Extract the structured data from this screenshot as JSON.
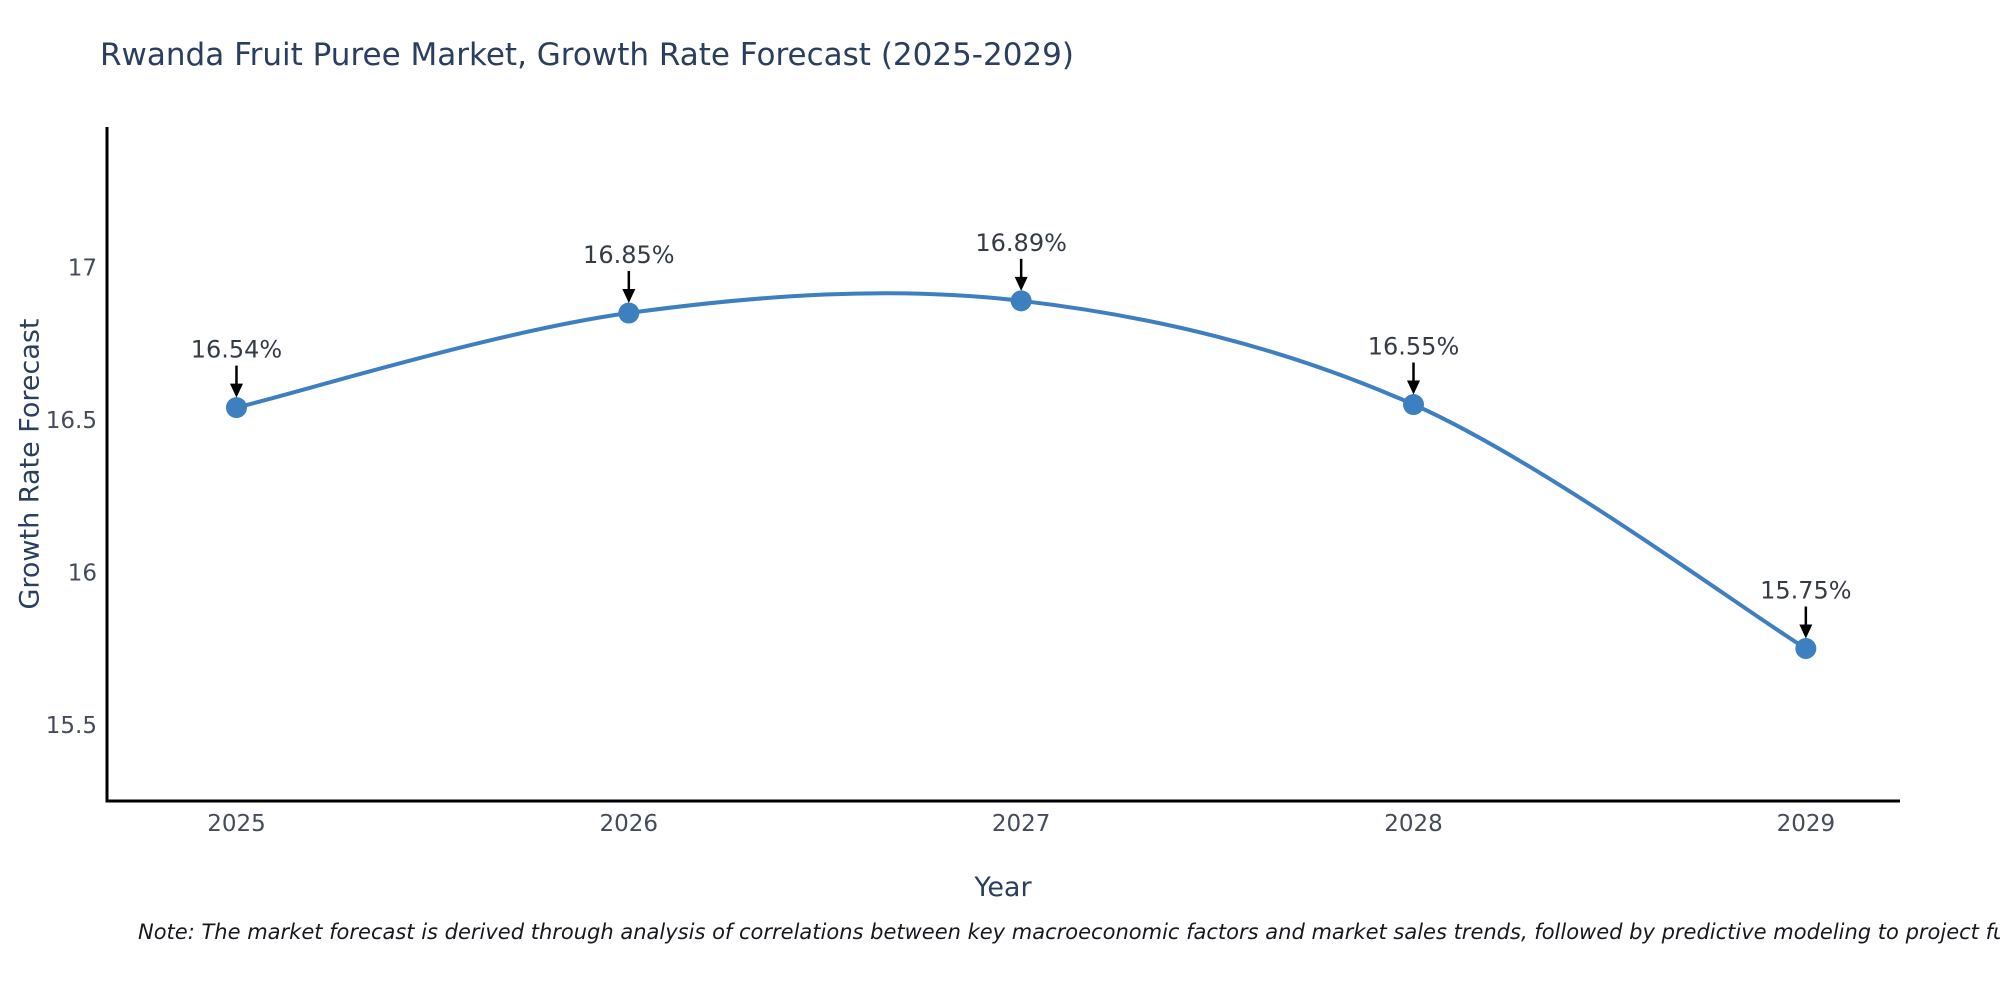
{
  "note": "Note: The market forecast is derived through analysis of correlations between key macroeconomic factors and market sales trends, followed by predictive modeling to project future sal",
  "chart_data": {
    "type": "line",
    "title": "Rwanda Fruit Puree Market, Growth Rate Forecast (2025-2029)",
    "xlabel": "Year",
    "ylabel": "Growth Rate Forecast",
    "x": [
      2025,
      2026,
      2027,
      2028,
      2029
    ],
    "values": [
      16.54,
      16.85,
      16.89,
      16.55,
      15.75
    ],
    "point_labels": [
      "16.54%",
      "16.85%",
      "16.89%",
      "16.55%",
      "15.75%"
    ],
    "xticks": [
      "2025",
      "2026",
      "2027",
      "2028",
      "2029"
    ],
    "yticks": [
      15.5,
      16,
      16.5,
      17
    ],
    "xlim": [
      2024.67,
      2029.24
    ],
    "ylim": [
      15.25,
      17.46
    ],
    "line_shape": "spline",
    "grid": false,
    "legend": "none",
    "colors": {
      "line": "#3d7fc0",
      "marker": "#3c80c0",
      "axis": "#000000",
      "tick_text": "#444b5a",
      "axis_title_text": "#2a3f5f",
      "title_text": "#2a3f5f",
      "annotation_text": "#353b45",
      "annotation_arrow": "#000000"
    }
  }
}
